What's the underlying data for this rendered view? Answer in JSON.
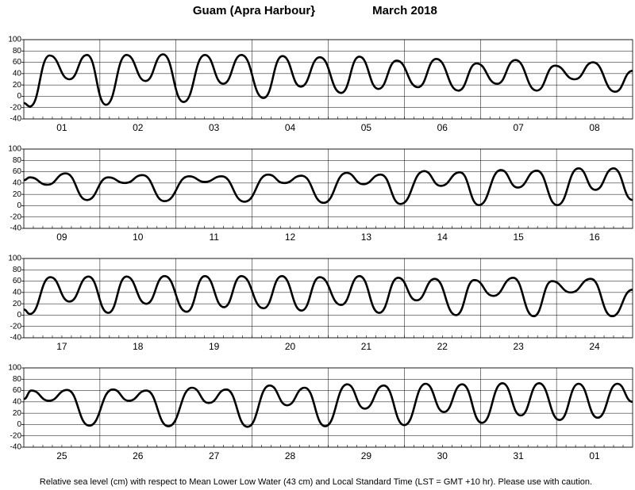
{
  "title": "Guam (Apra Harbour}",
  "date": "March   2018",
  "footer": "Relative sea level (cm) with respect to Mean Lower Low Water (43 cm) and Local Standard Time (LST = GMT +10 hr). Please use with caution.",
  "chart_data": [
    {
      "type": "line",
      "color": "#000000",
      "xlim": [
        0,
        8
      ],
      "ylim": [
        -40,
        100
      ],
      "yticks": [
        -40,
        -20,
        0,
        20,
        40,
        60,
        80,
        100
      ],
      "grid": true,
      "xticks": [
        {
          "value": 0.5,
          "label": "01"
        },
        {
          "value": 1.5,
          "label": "02"
        },
        {
          "value": 2.5,
          "label": "03"
        },
        {
          "value": 3.5,
          "label": "04"
        },
        {
          "value": 4.5,
          "label": "05"
        },
        {
          "value": 5.5,
          "label": "06"
        },
        {
          "value": 6.5,
          "label": "07"
        },
        {
          "value": 7.5,
          "label": "08"
        }
      ],
      "x": [
        0,
        0.08,
        0.34,
        0.6,
        0.83,
        1.08,
        1.35,
        1.6,
        1.83,
        2.1,
        2.38,
        2.62,
        2.86,
        3.15,
        3.4,
        3.64,
        3.89,
        4.17,
        4.41,
        4.66,
        4.9,
        5.18,
        5.42,
        5.71,
        5.95,
        6.22,
        6.46,
        6.74,
        6.98,
        7.24,
        7.48,
        7.77,
        8
      ],
      "values": [
        -12,
        -18,
        72,
        30,
        73,
        -15,
        73,
        27,
        74,
        -10,
        73,
        22,
        73,
        -3,
        71,
        17,
        69,
        6,
        70,
        13,
        63,
        16,
        66,
        10,
        58,
        22,
        64,
        10,
        54,
        30,
        60,
        8,
        45
      ]
    },
    {
      "type": "line",
      "color": "#000000",
      "xlim": [
        0,
        8
      ],
      "ylim": [
        -40,
        100
      ],
      "yticks": [
        -40,
        -20,
        0,
        20,
        40,
        60,
        80,
        100
      ],
      "grid": true,
      "xticks": [
        {
          "value": 0.5,
          "label": "09"
        },
        {
          "value": 1.5,
          "label": "10"
        },
        {
          "value": 2.5,
          "label": "11"
        },
        {
          "value": 3.5,
          "label": "12"
        },
        {
          "value": 4.5,
          "label": "13"
        },
        {
          "value": 5.5,
          "label": "14"
        },
        {
          "value": 6.5,
          "label": "15"
        },
        {
          "value": 7.5,
          "label": "16"
        }
      ],
      "x": [
        0,
        0.08,
        0.31,
        0.55,
        0.83,
        1.11,
        1.33,
        1.56,
        1.85,
        2.17,
        2.38,
        2.6,
        2.9,
        3.21,
        3.42,
        3.65,
        3.94,
        4.24,
        4.46,
        4.69,
        4.95,
        5.26,
        5.48,
        5.73,
        5.98,
        6.27,
        6.49,
        6.74,
        7.01,
        7.29,
        7.51,
        7.75,
        8
      ],
      "values": [
        45,
        50,
        37,
        57,
        10,
        50,
        40,
        54,
        8,
        52,
        42,
        52,
        7,
        55,
        40,
        53,
        5,
        58,
        38,
        55,
        3,
        61,
        35,
        59,
        1,
        63,
        32,
        62,
        1,
        66,
        28,
        66,
        10
      ]
    },
    {
      "type": "line",
      "color": "#000000",
      "xlim": [
        0,
        8
      ],
      "ylim": [
        -40,
        100
      ],
      "yticks": [
        -40,
        -20,
        0,
        20,
        40,
        60,
        80,
        100
      ],
      "grid": true,
      "xticks": [
        {
          "value": 0.5,
          "label": "17"
        },
        {
          "value": 1.5,
          "label": "18"
        },
        {
          "value": 2.5,
          "label": "19"
        },
        {
          "value": 3.5,
          "label": "20"
        },
        {
          "value": 4.5,
          "label": "21"
        },
        {
          "value": 5.5,
          "label": "22"
        },
        {
          "value": 6.5,
          "label": "23"
        },
        {
          "value": 7.5,
          "label": "24"
        }
      ],
      "x": [
        0,
        0.08,
        0.35,
        0.6,
        0.85,
        1.11,
        1.35,
        1.61,
        1.85,
        2.14,
        2.38,
        2.63,
        2.86,
        3.15,
        3.39,
        3.65,
        3.89,
        4.17,
        4.41,
        4.67,
        4.92,
        5.16,
        5.4,
        5.68,
        5.92,
        6.17,
        6.43,
        6.7,
        6.94,
        7.19,
        7.45,
        7.73,
        8
      ],
      "values": [
        10,
        2,
        67,
        24,
        68,
        4,
        68,
        20,
        69,
        6,
        69,
        14,
        69,
        12,
        69,
        8,
        67,
        18,
        69,
        4,
        66,
        26,
        64,
        0,
        62,
        34,
        66,
        -2,
        60,
        40,
        64,
        -2,
        45
      ]
    },
    {
      "type": "line",
      "color": "#000000",
      "xlim": [
        0,
        8
      ],
      "ylim": [
        -40,
        100
      ],
      "yticks": [
        -40,
        -20,
        0,
        20,
        40,
        60,
        80,
        100
      ],
      "grid": true,
      "xticks": [
        {
          "value": 0.5,
          "label": "25"
        },
        {
          "value": 1.5,
          "label": "26"
        },
        {
          "value": 2.5,
          "label": "27"
        },
        {
          "value": 3.5,
          "label": "28"
        },
        {
          "value": 4.5,
          "label": "29"
        },
        {
          "value": 5.5,
          "label": "30"
        },
        {
          "value": 6.5,
          "label": "31"
        },
        {
          "value": 7.5,
          "label": "01"
        }
      ],
      "x": [
        0,
        0.1,
        0.33,
        0.57,
        0.86,
        1.17,
        1.38,
        1.61,
        1.9,
        2.21,
        2.43,
        2.66,
        2.94,
        3.23,
        3.46,
        3.69,
        3.96,
        4.25,
        4.48,
        4.73,
        5.0,
        5.28,
        5.52,
        5.76,
        6.02,
        6.29,
        6.53,
        6.77,
        7.04,
        7.29,
        7.54,
        7.8,
        8
      ],
      "values": [
        45,
        60,
        42,
        61,
        -2,
        62,
        42,
        60,
        -3,
        65,
        38,
        62,
        -4,
        69,
        34,
        65,
        -3,
        71,
        28,
        69,
        -1,
        72,
        22,
        71,
        3,
        73,
        16,
        73,
        8,
        72,
        12,
        72,
        40
      ]
    }
  ]
}
